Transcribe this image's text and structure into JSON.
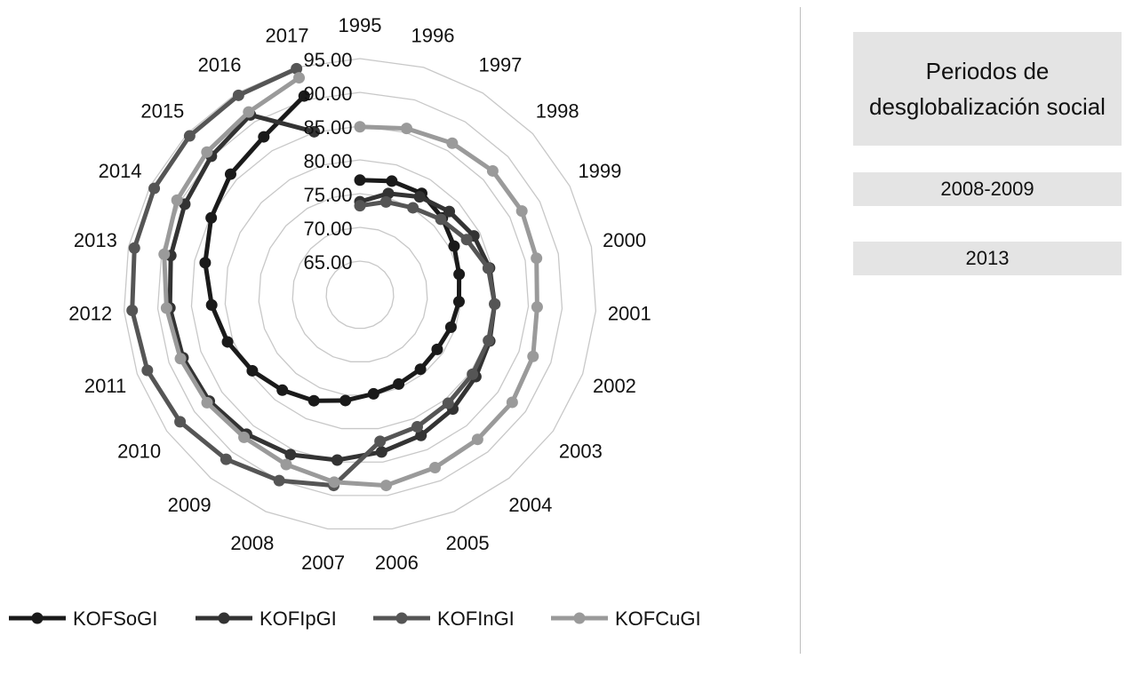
{
  "chart_data": {
    "type": "radar",
    "categories": [
      "1995",
      "1996",
      "1997",
      "1998",
      "1999",
      "2000",
      "2001",
      "2002",
      "2003",
      "2004",
      "2005",
      "2006",
      "2007",
      "2008",
      "2009",
      "2010",
      "2011",
      "2012",
      "2013",
      "2014",
      "2015",
      "2016",
      "2017"
    ],
    "rings": [
      "65.00",
      "70.00",
      "75.00",
      "80.00",
      "85.00",
      "90.00",
      "95.00"
    ],
    "rlim": [
      60,
      95
    ],
    "grid": true,
    "legend_position": "bottom",
    "series": [
      {
        "name": "KOFSoGI",
        "color": "#1a1a1a",
        "values": [
          77.0,
          77.5,
          77.6,
          76.7,
          75.7,
          75.0,
          74.7,
          74.3,
          74.0,
          74.2,
          74.4,
          74.8,
          75.8,
          77.1,
          78.2,
          79.5,
          80.8,
          82.0,
          83.4,
          84.8,
          86.2,
          87.4,
          90.6
        ]
      },
      {
        "name": "KOFIpGI",
        "color": "#333333",
        "values": [
          73.8,
          75.6,
          77.0,
          78.1,
          79.0,
          79.6,
          80.0,
          80.4,
          81.0,
          81.8,
          82.7,
          83.5,
          84.7,
          85.8,
          86.6,
          87.3,
          87.8,
          88.2,
          88.6,
          89.2,
          90.1,
          91.2,
          85.1
        ]
      },
      {
        "name": "KOFInGI",
        "color": "#555555",
        "values": [
          73.2,
          74.3,
          75.1,
          76.4,
          77.8,
          79.4,
          80.0,
          80.2,
          80.4,
          80.7,
          81.3,
          81.9,
          88.5,
          90.0,
          91.4,
          92.6,
          93.4,
          93.8,
          94.1,
          94.3,
          94.5,
          94.6,
          94.8
        ]
      },
      {
        "name": "KOFCuGI",
        "color": "#9a9a9a",
        "values": [
          84.9,
          85.6,
          86.3,
          86.9,
          87.0,
          86.7,
          86.3,
          87.2,
          87.6,
          87.6,
          87.9,
          88.5,
          88.0,
          87.4,
          87.2,
          87.7,
          88.2,
          88.7,
          89.6,
          90.5,
          91.0,
          91.7,
          93.4
        ]
      }
    ]
  },
  "side_panel": {
    "title": "Periodos de desglobalización social",
    "periods": [
      "2008-2009",
      "2013"
    ]
  }
}
